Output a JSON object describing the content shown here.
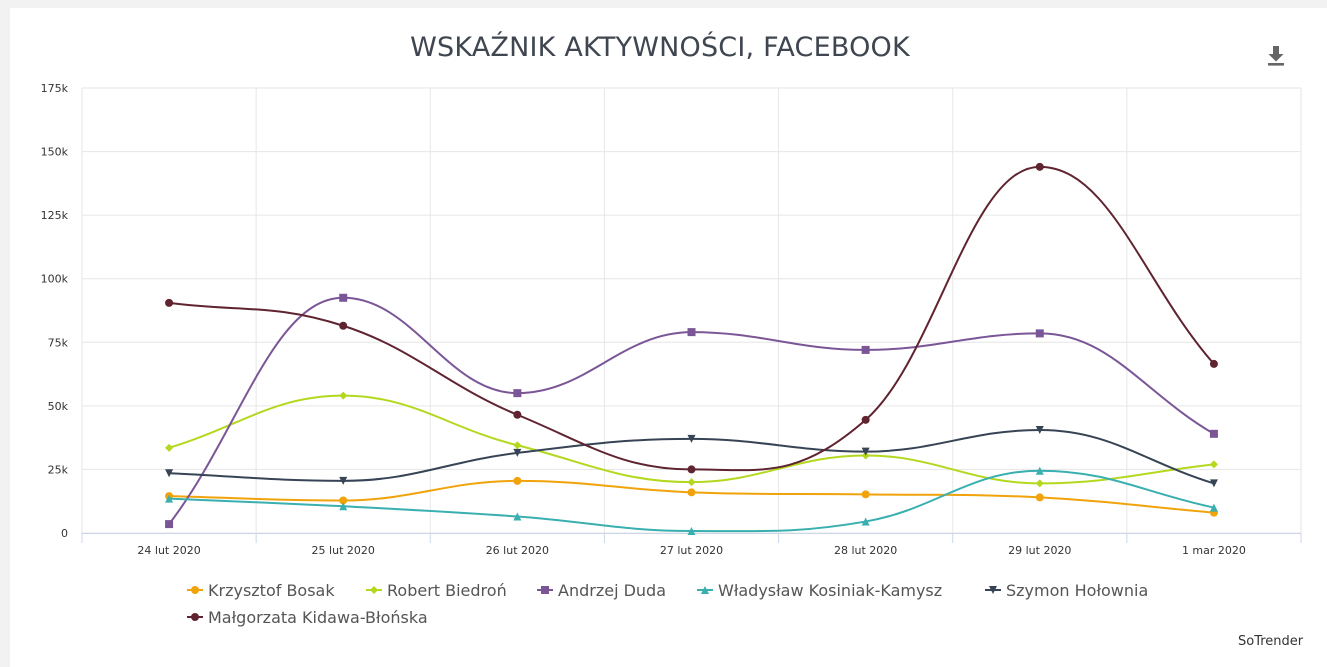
{
  "title": "WSKAŹNIK AKTYWNOŚCI, FACEBOOK",
  "credit": "SoTrender",
  "download_icon": "download-icon",
  "chart_data": {
    "type": "line",
    "title": "WSKAŹNIK AKTYWNOŚCI, FACEBOOK",
    "xlabel": "",
    "ylabel": "",
    "categories": [
      "24 lut 2020",
      "25 lut 2020",
      "26 lut 2020",
      "27 lut 2020",
      "28 lut 2020",
      "29 lut 2020",
      "1 mar 2020"
    ],
    "ylim": [
      0,
      175000
    ],
    "yticks": [
      0,
      25000,
      50000,
      75000,
      100000,
      125000,
      150000,
      175000
    ],
    "ytick_labels": [
      "0",
      "25k",
      "50k",
      "75k",
      "100k",
      "125k",
      "150k",
      "175k"
    ],
    "grid": true,
    "legend_position": "bottom",
    "series": [
      {
        "name": "Krzysztof Bosak",
        "color": "#f0a30a",
        "marker": "circle",
        "values": [
          14500,
          12800,
          20500,
          16000,
          15200,
          14000,
          8000
        ]
      },
      {
        "name": "Robert Biedroń",
        "color": "#b3d81e",
        "marker": "diamond",
        "values": [
          33500,
          54000,
          34500,
          20000,
          30500,
          19500,
          27000
        ]
      },
      {
        "name": "Andrzej Duda",
        "color": "#7b5697",
        "marker": "square",
        "values": [
          3500,
          92500,
          55000,
          79000,
          72000,
          78500,
          39000
        ]
      },
      {
        "name": "Władysław Kosiniak-Kamysz",
        "color": "#3aafb0",
        "marker": "triangle",
        "values": [
          13500,
          10500,
          6500,
          800,
          4500,
          24500,
          10000
        ]
      },
      {
        "name": "Szymon Hołownia",
        "color": "#374455",
        "marker": "triangle-down",
        "values": [
          23500,
          20500,
          31500,
          37000,
          32000,
          40500,
          19500
        ]
      },
      {
        "name": "Małgorzata Kidawa-Błońska",
        "color": "#5f2430",
        "marker": "circle",
        "values": [
          90500,
          81500,
          46500,
          25000,
          44500,
          144000,
          66500
        ]
      }
    ]
  }
}
